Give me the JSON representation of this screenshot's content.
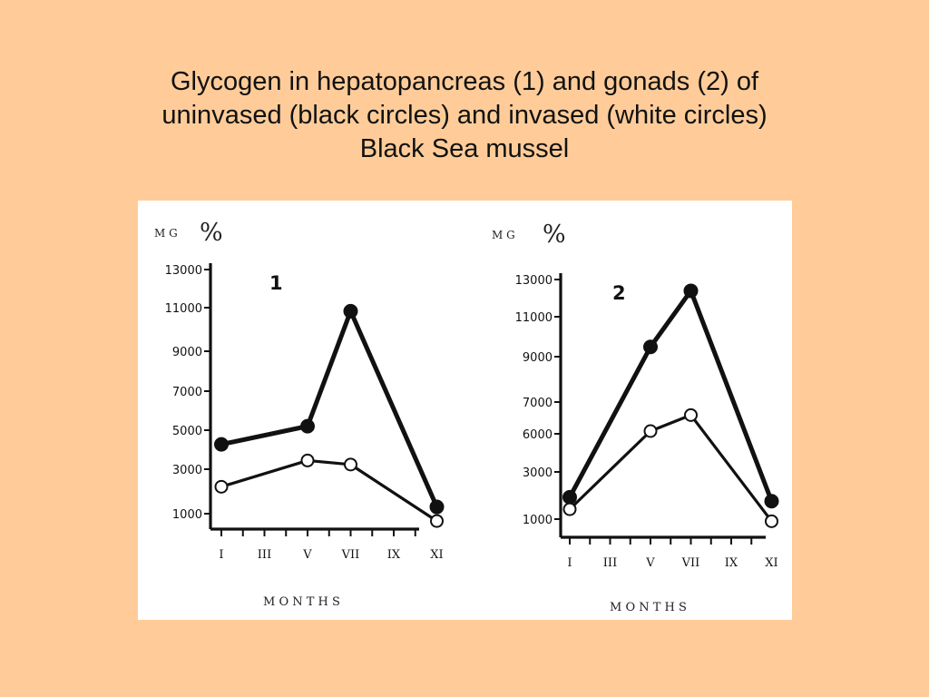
{
  "title": {
    "lines": [
      "Glycogen in hepatopancreas (1) and gonads (2) of",
      "uninvased (black circles) and invased (white circles)",
      "Black Sea mussel"
    ]
  },
  "colors": {
    "background": "#FFCC99",
    "panel": "#FFFFFF",
    "ink": "#111111"
  },
  "chart_data": [
    {
      "type": "line",
      "panel_label": "1",
      "unit_mg": "M G",
      "unit_pct": "%",
      "xlabel": "M O N T H S",
      "x_tick_labels": [
        "I",
        "III",
        "V",
        "VII",
        "IX",
        "XI"
      ],
      "y_tick_labels": [
        "13000",
        "11000",
        "9000",
        "7000",
        "5000",
        "3000",
        "1000"
      ],
      "ylim": [
        0,
        13000
      ],
      "grid": false,
      "series": [
        {
          "marker": "filled",
          "x": [
            "I",
            "V",
            "VII",
            "XI"
          ],
          "values": [
            4200,
            5100,
            10800,
            1100
          ]
        },
        {
          "marker": "open",
          "x": [
            "I",
            "V",
            "VII",
            "XI"
          ],
          "values": [
            2100,
            3400,
            3200,
            400
          ]
        }
      ]
    },
    {
      "type": "line",
      "panel_label": "2",
      "unit_mg": "M G",
      "unit_pct": "%",
      "xlabel": "M O N T H S",
      "x_tick_labels": [
        "I",
        "III",
        "V",
        "VII",
        "IX",
        "XI"
      ],
      "y_tick_labels": [
        "13000",
        "11000",
        "9000",
        "7000",
        "6000",
        "3000",
        "1000"
      ],
      "ylim": [
        0,
        13000
      ],
      "grid": false,
      "series": [
        {
          "marker": "filled",
          "x": [
            "I",
            "V",
            "VII",
            "XI"
          ],
          "values": [
            2000,
            9500,
            12300,
            1800
          ]
        },
        {
          "marker": "open",
          "x": [
            "I",
            "V",
            "VII",
            "XI"
          ],
          "values": [
            1400,
            5300,
            6100,
            800
          ]
        }
      ]
    }
  ]
}
